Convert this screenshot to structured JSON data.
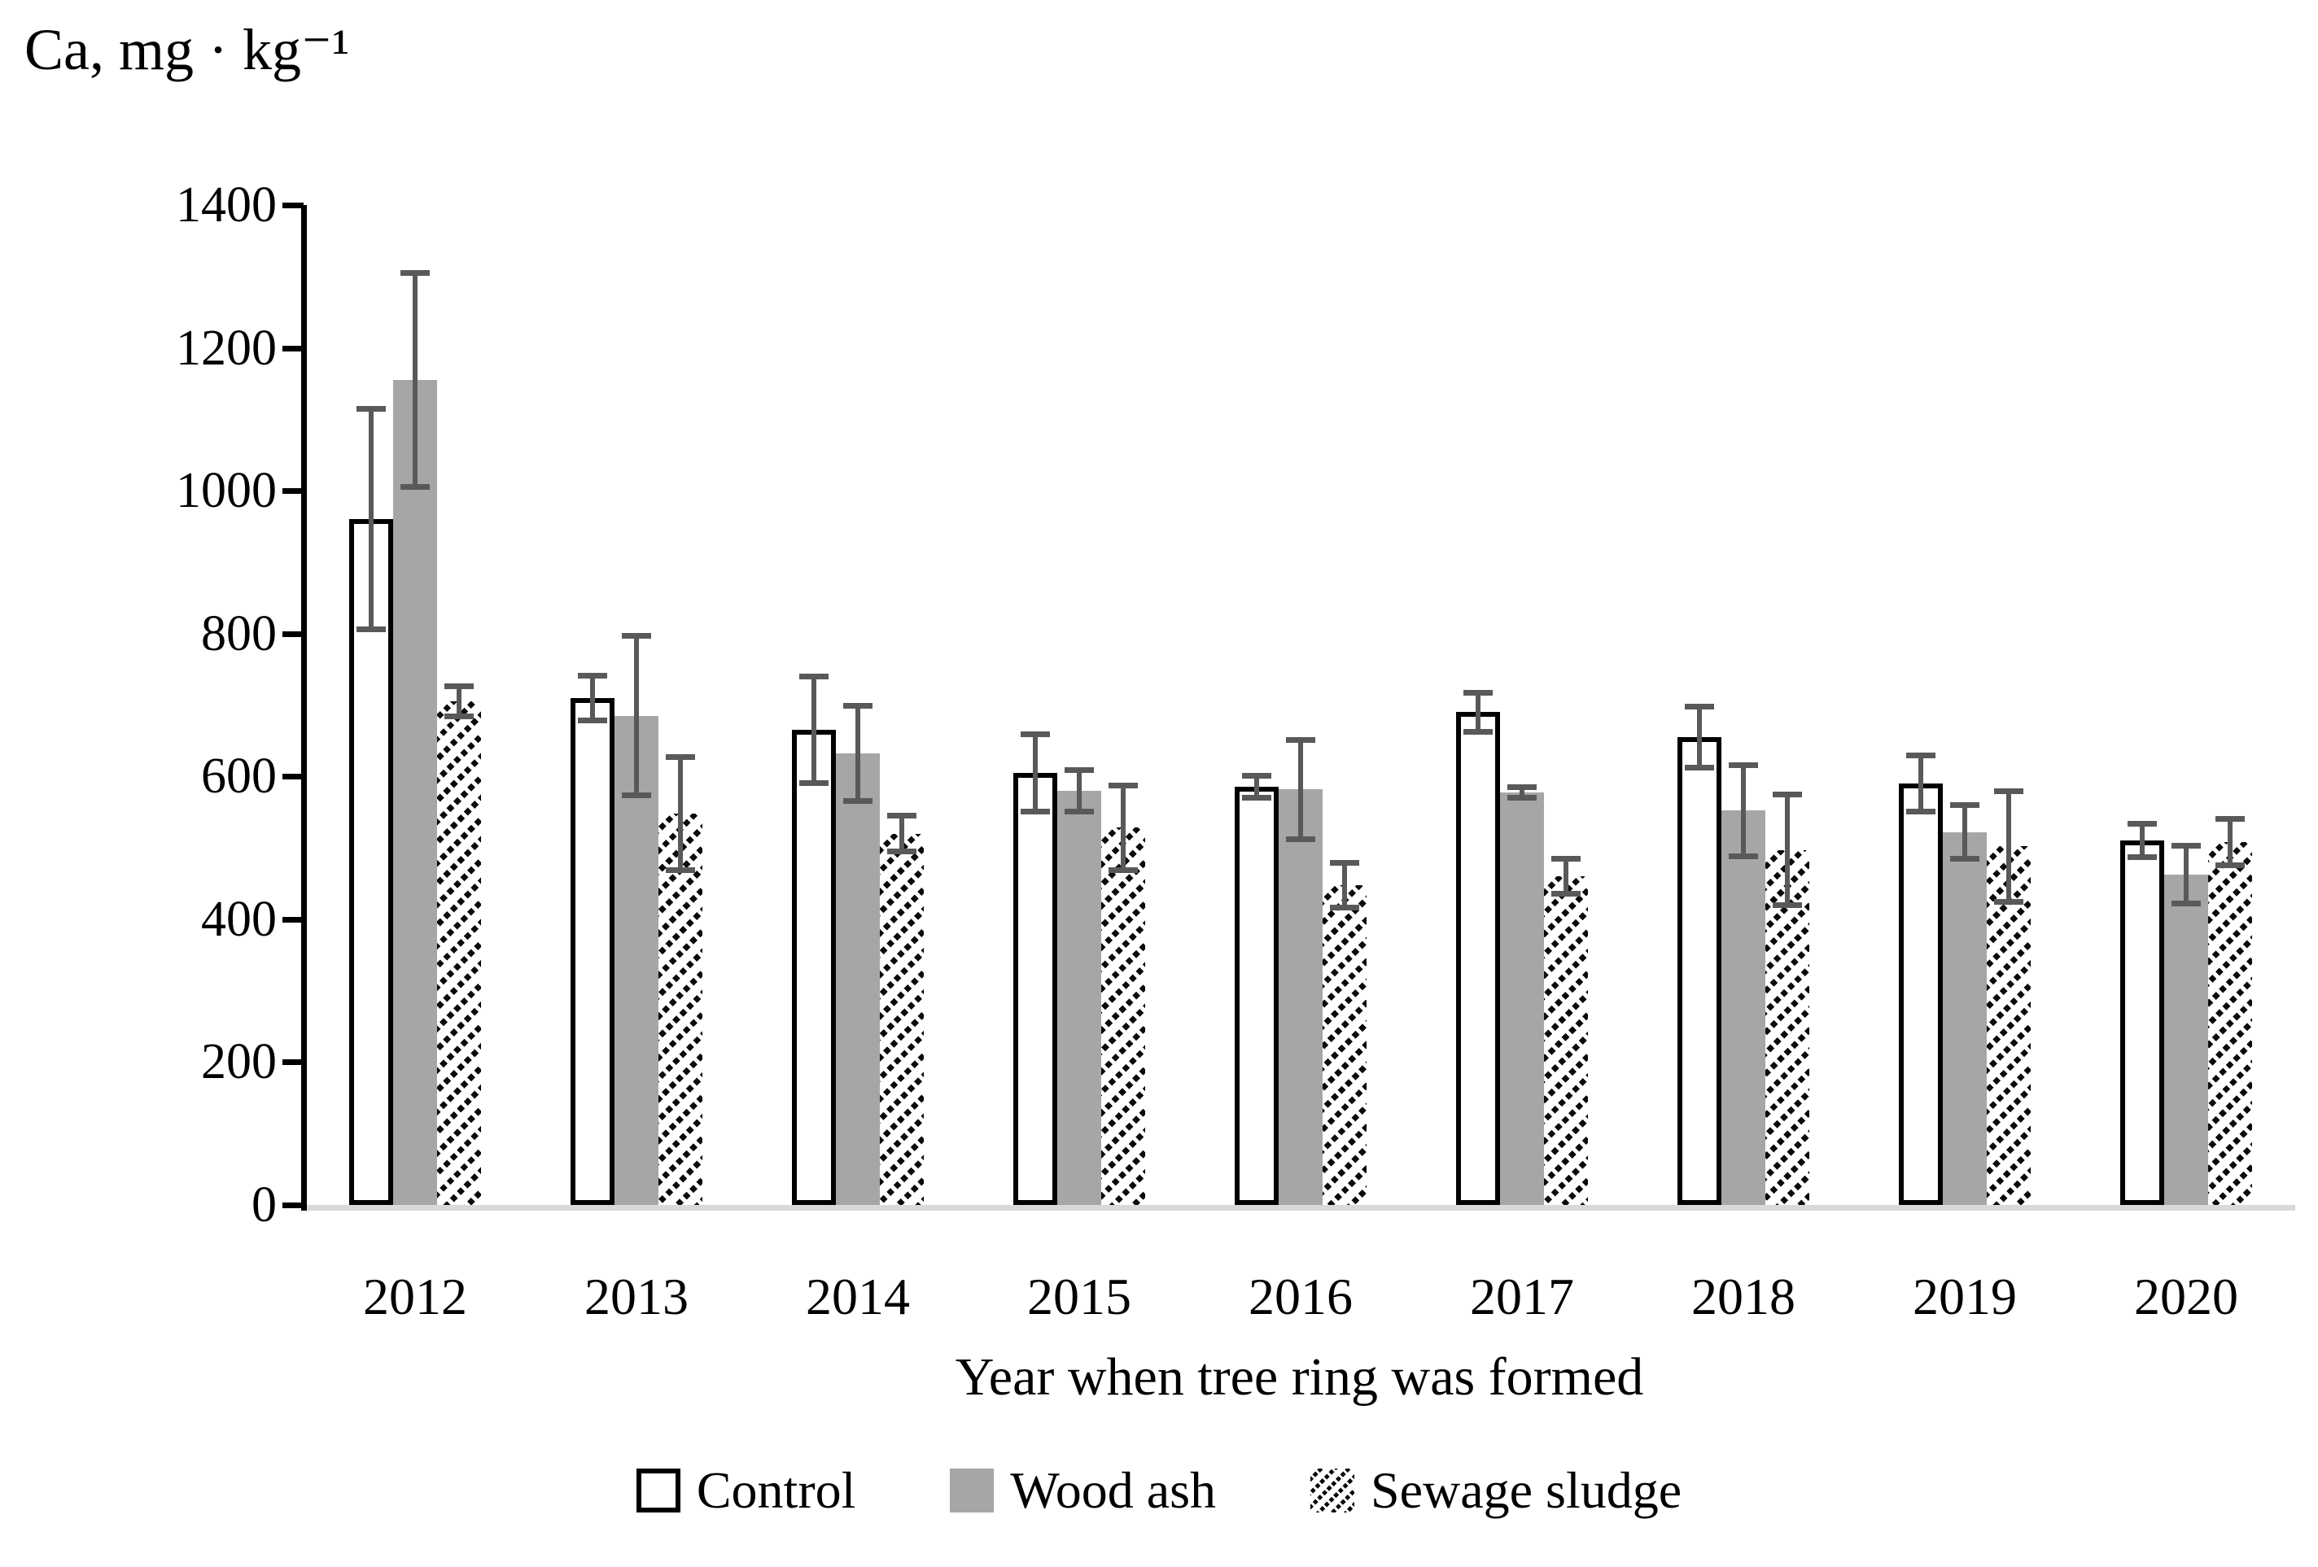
{
  "chart_data": {
    "type": "bar",
    "title": "Ca, mg · kg⁻¹",
    "xlabel": "Year when tree ring was formed",
    "ylabel": "Ca, mg · kg⁻¹",
    "ylim": [
      0,
      1400
    ],
    "ytick_step": 200,
    "yticks": [
      "0",
      "200",
      "400",
      "600",
      "800",
      "1000",
      "1200",
      "1400"
    ],
    "grid": false,
    "legend_position": "bottom",
    "error_bars": true,
    "categories": [
      "2012",
      "2013",
      "2014",
      "2015",
      "2016",
      "2017",
      "2018",
      "2019",
      "2020"
    ],
    "series": [
      {
        "name": "Control",
        "style": "outline",
        "values": [
          960,
          710,
          665,
          605,
          585,
          690,
          655,
          590,
          510
        ],
        "errors": [
          155,
          32,
          75,
          55,
          16,
          28,
          43,
          40,
          24
        ]
      },
      {
        "name": "Wood ash",
        "style": "solid",
        "values": [
          1155,
          685,
          632,
          580,
          582,
          578,
          552,
          522,
          463
        ],
        "errors": [
          150,
          112,
          67,
          30,
          70,
          8,
          64,
          38,
          41
        ]
      },
      {
        "name": "Sewage sludge",
        "style": "hatch",
        "values": [
          705,
          548,
          520,
          528,
          448,
          460,
          497,
          502,
          508
        ],
        "errors": [
          22,
          80,
          26,
          60,
          32,
          25,
          78,
          78,
          33
        ]
      }
    ],
    "colors": {
      "wood_ash_fill": "#a6a6a6",
      "error_bar": "#595959",
      "bar_outline": "#000000",
      "axis_line": "#000000",
      "baseline": "#d9d9d9",
      "background": "#ffffff",
      "text": "#000000"
    }
  }
}
